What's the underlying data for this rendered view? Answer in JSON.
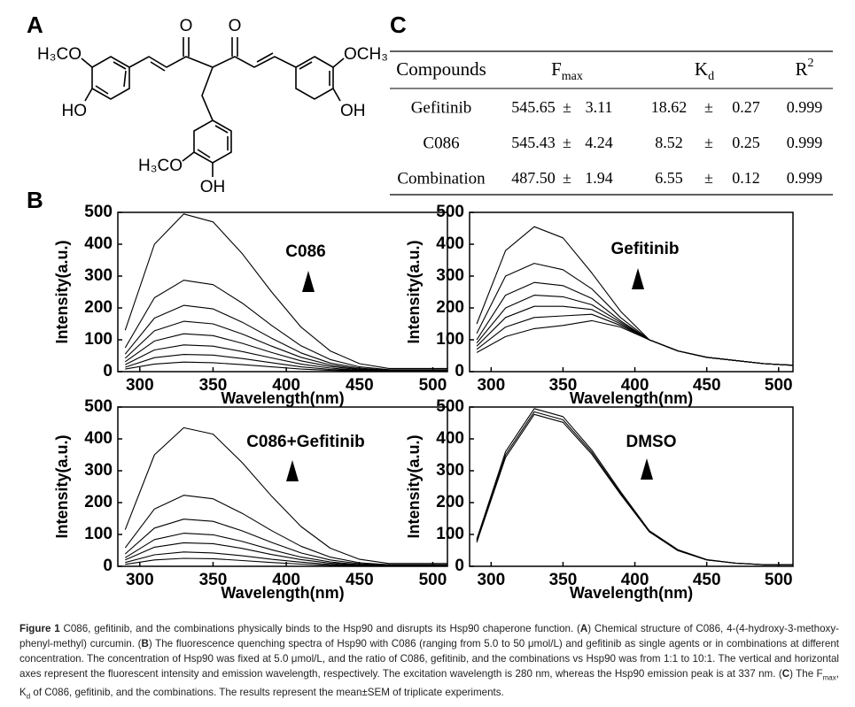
{
  "panel_labels": [
    "A",
    "B",
    "C"
  ],
  "structure": {
    "labels": [
      "H₃CO",
      "HO",
      "O",
      "O",
      "OCH₃",
      "OH",
      "H₃CO",
      "OH"
    ]
  },
  "table": {
    "header": [
      "Compounds",
      {
        "text": "F",
        "sub": "max"
      },
      {
        "text": "K",
        "sub": "d"
      },
      {
        "text": "R",
        "sup": "2"
      }
    ],
    "rows": [
      [
        "Gefitinib",
        "545.65",
        "±",
        "3.11",
        "18.62",
        "±",
        "0.27",
        "0.999"
      ],
      [
        "C086",
        "545.43",
        "±",
        "4.24",
        "8.52",
        "±",
        "0.25",
        "0.999"
      ],
      [
        "Combination",
        "487.50",
        "±",
        "1.94",
        "6.55",
        "±",
        "0.12",
        "0.999"
      ]
    ]
  },
  "chart_data": [
    {
      "type": "line",
      "annotation": "C086",
      "xlabel": "Wavelength(nm)",
      "ylabel": "Intensity(a.u.)",
      "x": [
        290,
        310,
        330,
        350,
        370,
        390,
        410,
        430,
        450,
        470,
        490,
        510
      ],
      "xlim": [
        285,
        510
      ],
      "xticks": [
        300,
        350,
        400,
        450,
        500
      ],
      "ylim": [
        0,
        500
      ],
      "yticks": [
        0,
        100,
        200,
        300,
        400,
        500
      ],
      "series": [
        {
          "color": "#000",
          "values": [
            130,
            400,
            495,
            470,
            370,
            250,
            140,
            65,
            25,
            10,
            10,
            10
          ]
        },
        {
          "color": "#000",
          "values": [
            75,
            232,
            287,
            273,
            215,
            145,
            81,
            38,
            15,
            6,
            6,
            6
          ]
        },
        {
          "color": "#000",
          "values": [
            55,
            168,
            208,
            197,
            155,
            105,
            59,
            27,
            11,
            4,
            4,
            4
          ]
        },
        {
          "color": "#000",
          "values": [
            42,
            128,
            158,
            150,
            118,
            80,
            45,
            21,
            8,
            3,
            3,
            3
          ]
        },
        {
          "color": "#000",
          "values": [
            31,
            96,
            119,
            113,
            89,
            60,
            34,
            16,
            6,
            2,
            2,
            2
          ]
        },
        {
          "color": "#000",
          "values": [
            22,
            68,
            84,
            80,
            63,
            43,
            24,
            11,
            4,
            2,
            2,
            2
          ]
        },
        {
          "color": "#000",
          "values": [
            14,
            44,
            54,
            52,
            41,
            28,
            15,
            7,
            3,
            1,
            1,
            1
          ]
        },
        {
          "color": "#000",
          "values": [
            8,
            24,
            30,
            28,
            22,
            15,
            8,
            4,
            2,
            1,
            1,
            1
          ]
        }
      ]
    },
    {
      "type": "line",
      "annotation": "Gefitinib",
      "xlabel": "Wavelength(nm)",
      "ylabel": "Intensity(a.u.)",
      "x": [
        290,
        310,
        330,
        350,
        370,
        390,
        410,
        430,
        450,
        470,
        490,
        510
      ],
      "xlim": [
        285,
        510
      ],
      "xticks": [
        300,
        350,
        400,
        450,
        500
      ],
      "ylim": [
        0,
        500
      ],
      "yticks": [
        0,
        100,
        200,
        300,
        400,
        500
      ],
      "series": [
        {
          "color": "#000",
          "values": [
            150,
            380,
            455,
            420,
            310,
            190,
            100,
            65,
            45,
            35,
            25,
            20
          ]
        },
        {
          "color": "#000",
          "values": [
            120,
            300,
            340,
            320,
            260,
            170,
            100,
            65,
            45,
            35,
            25,
            20
          ]
        },
        {
          "color": "#000",
          "values": [
            100,
            240,
            280,
            270,
            230,
            160,
            100,
            65,
            45,
            35,
            25,
            20
          ]
        },
        {
          "color": "#000",
          "values": [
            90,
            200,
            240,
            235,
            210,
            155,
            100,
            65,
            45,
            35,
            25,
            20
          ]
        },
        {
          "color": "#000",
          "values": [
            80,
            170,
            205,
            205,
            195,
            150,
            100,
            65,
            45,
            35,
            25,
            20
          ]
        },
        {
          "color": "#000",
          "values": [
            70,
            140,
            170,
            175,
            180,
            145,
            100,
            65,
            45,
            35,
            25,
            20
          ]
        },
        {
          "color": "#000",
          "values": [
            60,
            110,
            135,
            145,
            160,
            140,
            100,
            65,
            45,
            35,
            25,
            20
          ]
        }
      ]
    },
    {
      "type": "line",
      "annotation": "C086+Gefitinib",
      "xlabel": "Wavelength(nm)",
      "ylabel": "Intensity(a.u.)",
      "x": [
        290,
        310,
        330,
        350,
        370,
        390,
        410,
        430,
        450,
        470,
        490,
        510
      ],
      "xlim": [
        285,
        510
      ],
      "xticks": [
        300,
        350,
        400,
        450,
        500
      ],
      "ylim": [
        0,
        500
      ],
      "yticks": [
        0,
        100,
        200,
        300,
        400,
        500
      ],
      "series": [
        {
          "color": "#000",
          "values": [
            115,
            350,
            435,
            415,
            325,
            220,
            125,
            57,
            22,
            9,
            9,
            9
          ]
        },
        {
          "color": "#000",
          "values": [
            58,
            180,
            223,
            212,
            166,
            112,
            63,
            29,
            11,
            5,
            5,
            5
          ]
        },
        {
          "color": "#000",
          "values": [
            39,
            120,
            148,
            141,
            111,
            75,
            42,
            20,
            8,
            3,
            3,
            3
          ]
        },
        {
          "color": "#000",
          "values": [
            27,
            84,
            104,
            99,
            78,
            52,
            29,
            14,
            5,
            2,
            2,
            2
          ]
        },
        {
          "color": "#000",
          "values": [
            20,
            60,
            74,
            71,
            56,
            37,
            21,
            10,
            4,
            2,
            2,
            2
          ]
        },
        {
          "color": "#000",
          "values": [
            12,
            36,
            45,
            42,
            33,
            22,
            13,
            6,
            2,
            1,
            1,
            1
          ]
        },
        {
          "color": "#000",
          "values": [
            6,
            20,
            25,
            24,
            18,
            12,
            7,
            3,
            1,
            1,
            1,
            1
          ]
        }
      ]
    },
    {
      "type": "line",
      "annotation": "DMSO",
      "xlabel": "Wavelength(nm)",
      "ylabel": "Intensity(a.u.)",
      "x": [
        290,
        310,
        330,
        350,
        370,
        390,
        410,
        430,
        450,
        470,
        490,
        510
      ],
      "xlim": [
        285,
        510
      ],
      "xticks": [
        300,
        350,
        400,
        450,
        500
      ],
      "ylim": [
        0,
        500
      ],
      "yticks": [
        0,
        100,
        200,
        300,
        400,
        500
      ],
      "series": [
        {
          "color": "#000",
          "values": [
            85,
            360,
            495,
            470,
            365,
            235,
            112,
            52,
            21,
            10,
            5,
            5
          ]
        },
        {
          "color": "#000",
          "values": [
            80,
            350,
            485,
            460,
            358,
            230,
            110,
            50,
            20,
            10,
            5,
            5
          ]
        },
        {
          "color": "#000",
          "values": [
            75,
            342,
            477,
            452,
            352,
            226,
            108,
            49,
            20,
            10,
            5,
            5
          ]
        }
      ]
    }
  ],
  "caption": [
    {
      "text": "Figure 1",
      "style": "bold"
    },
    {
      "text": " C086, gefitinib, and the combinations physically binds to the Hsp90 and disrupts its Hsp90 chaperone function. ("
    },
    {
      "text": "A",
      "style": "bold"
    },
    {
      "text": ") Chemical structure of C086, 4-(4-hydroxy-3-methoxy-phenyl-methyl) curcumin. ("
    },
    {
      "text": "B",
      "style": "bold"
    },
    {
      "text": ") The fluorescence quenching spectra of Hsp90 with C086 (ranging from 5.0 to 50 μmol/L) and gefitinib as single agents or in combinations at different concentration. The concentration of Hsp90 was fixed at 5.0 μmol/L, and the ratio of C086, gefitinib, and the combinations vs Hsp90 was from 1:1 to 10:1. The vertical and horizontal axes represent the fluorescent intensity and emission wavelength, respectively. The excitation wavelength is 280 nm, whereas the Hsp90 emission peak is at 337 nm. ("
    },
    {
      "text": "C",
      "style": "bold"
    },
    {
      "text": ") The F"
    },
    {
      "text": "max",
      "style": "sub"
    },
    {
      "text": ", K"
    },
    {
      "text": "d",
      "style": "sub"
    },
    {
      "text": " of C086, gefitinib, and the combinations. The results represent the mean±SEM of triplicate experiments."
    }
  ]
}
